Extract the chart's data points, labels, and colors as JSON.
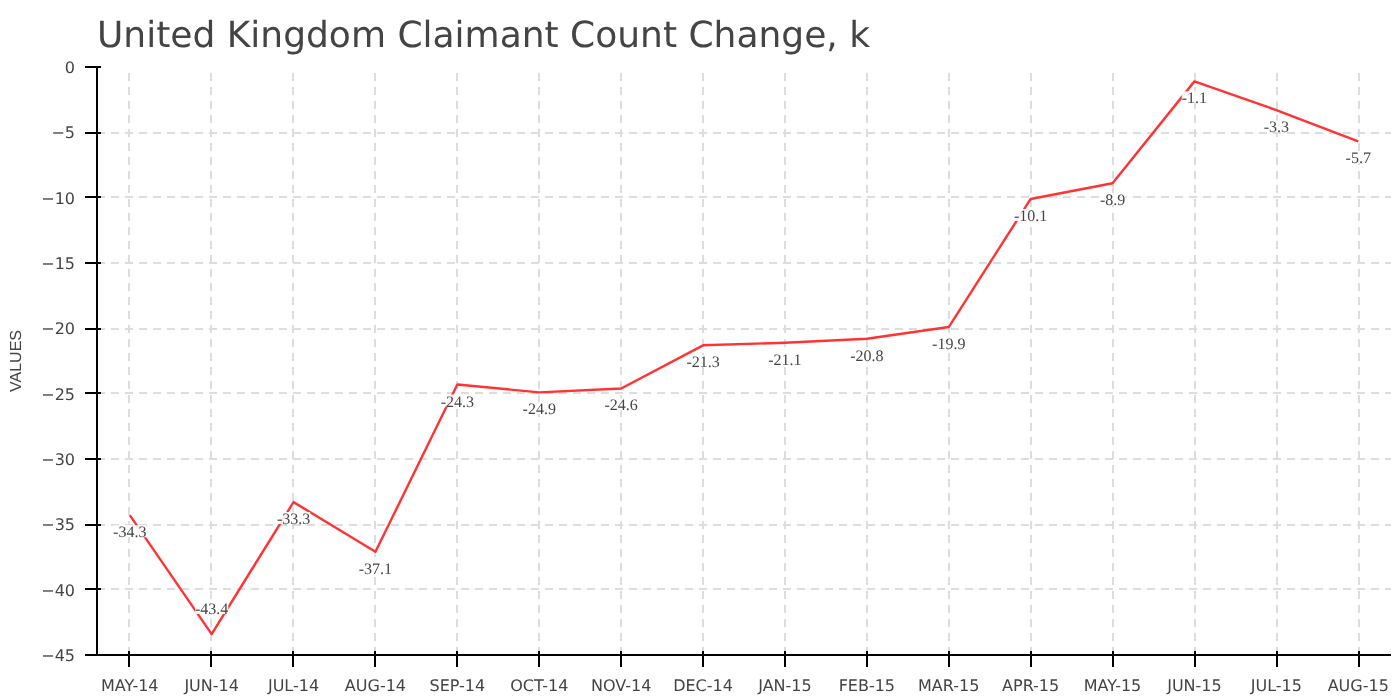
{
  "chart_data": {
    "type": "line",
    "title": "United Kingdom Claimant Count Change, k",
    "ylabel": "VALUES",
    "categories": [
      "MAY-14",
      "JUN-14",
      "JUL-14",
      "AUG-14",
      "SEP-14",
      "OCT-14",
      "NOV-14",
      "DEC-14",
      "JAN-15",
      "FEB-15",
      "MAR-15",
      "APR-15",
      "MAY-15",
      "JUN-15",
      "JUL-15",
      "AUG-15"
    ],
    "series": [
      {
        "color": "#ff3333",
        "values": [
          -34.3,
          -43.4,
          -33.3,
          -37.1,
          -24.3,
          -24.9,
          -24.6,
          -21.3,
          -21.1,
          -20.8,
          -19.9,
          -10.1,
          -8.9,
          -1.1,
          -3.3,
          -5.7
        ]
      }
    ],
    "ylim": [
      -45,
      0
    ],
    "yticks": [
      -45,
      -40,
      -35,
      -30,
      -25,
      -20,
      -15,
      -10,
      -5,
      0
    ],
    "grid": true,
    "data_labels": true
  }
}
